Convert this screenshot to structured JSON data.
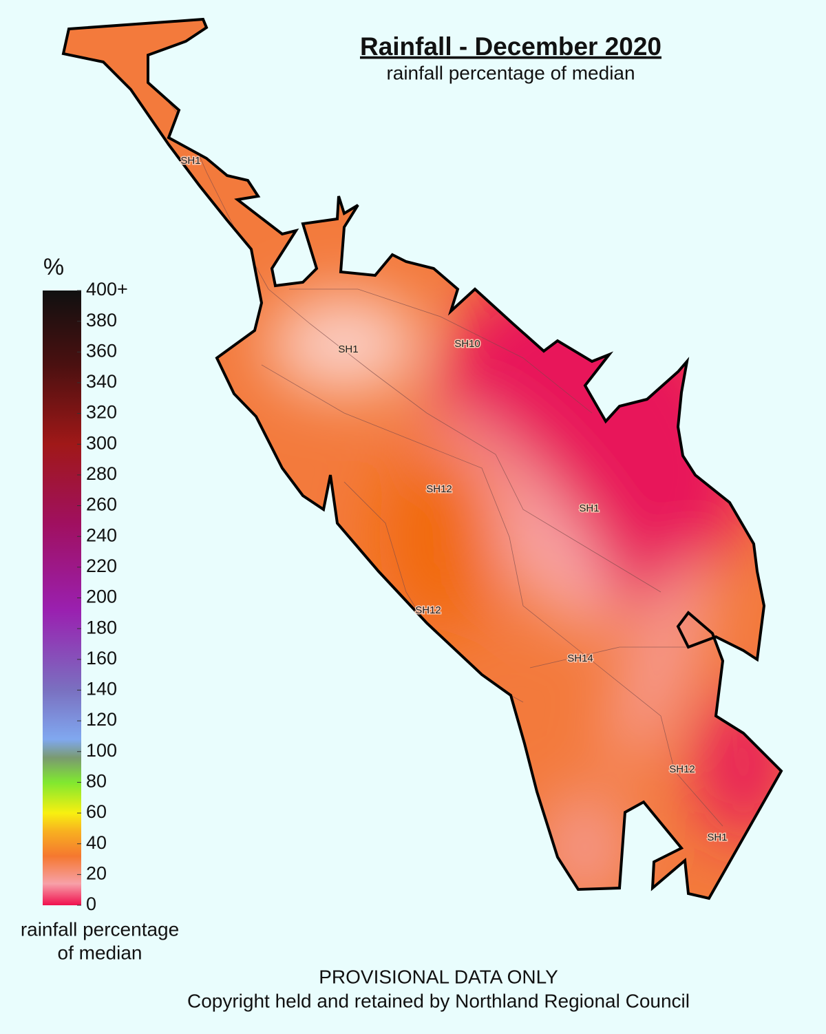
{
  "header": {
    "title": "Rainfall - December 2020",
    "subtitle": "rainfall percentage of median"
  },
  "legend": {
    "unit": "%",
    "ticks": [
      0,
      20,
      40,
      60,
      80,
      100,
      120,
      140,
      160,
      180,
      200,
      220,
      240,
      260,
      280,
      300,
      320,
      340,
      360,
      380,
      {
        "value": 400,
        "label": "400+"
      }
    ],
    "caption": [
      "rainfall percentage",
      "of median"
    ]
  },
  "roads": {
    "labels": [
      "SH1",
      "SH1",
      "SH10",
      "SH12",
      "SH1",
      "SH12",
      "SH14",
      "SH12",
      "SH1"
    ]
  },
  "footer": {
    "notice": "PROVISIONAL DATA ONLY",
    "copyright": "Copyright held and retained by Northland Regional Council"
  }
}
